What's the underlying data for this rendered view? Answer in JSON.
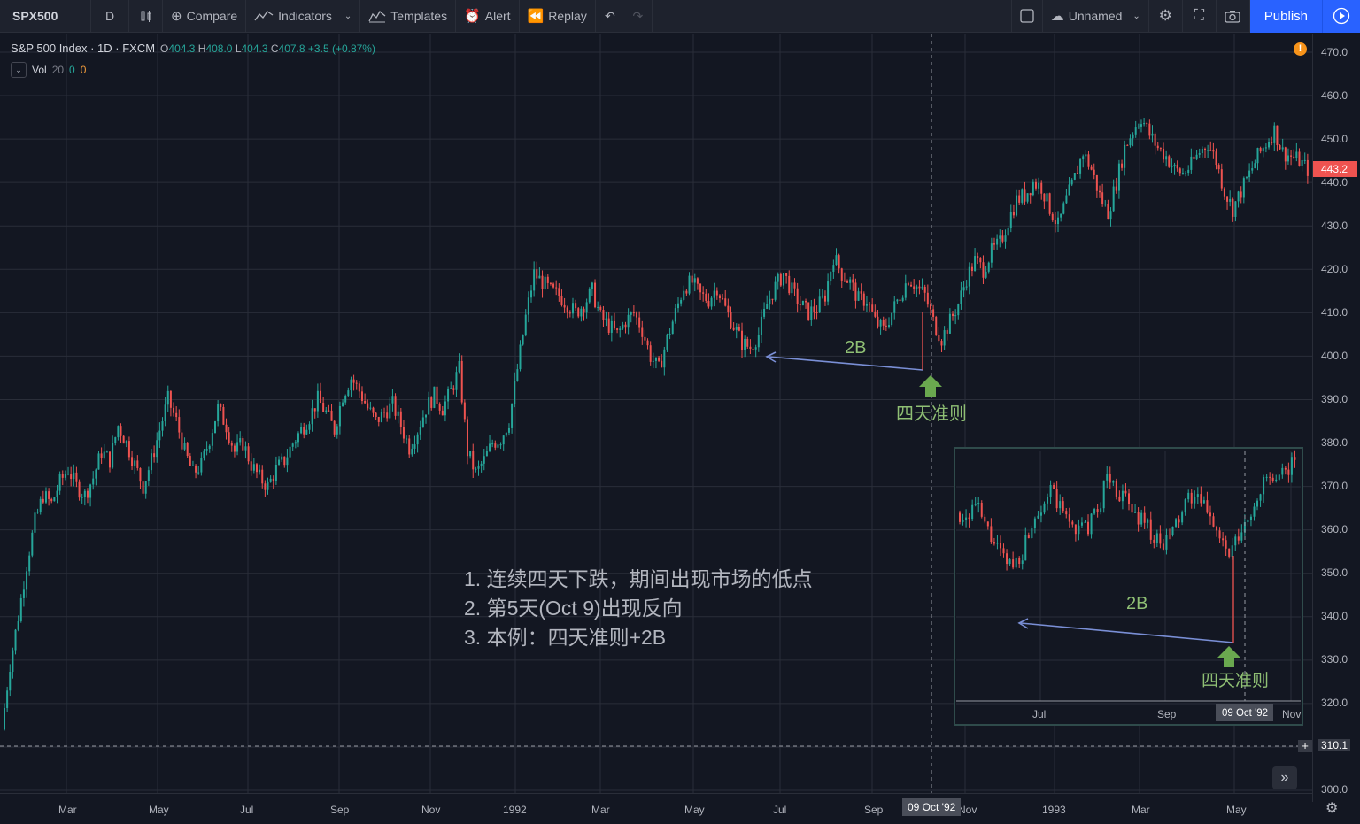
{
  "toolbar": {
    "symbol": "SPX500",
    "interval": "D",
    "compare": "Compare",
    "indicators": "Indicators",
    "templates": "Templates",
    "alert": "Alert",
    "replay": "Replay",
    "layout_name": "Unnamed",
    "publish": "Publish"
  },
  "legend": {
    "title": "S&P 500 Index · 1D · FXCM",
    "open_label": "O",
    "open": "404.3",
    "high_label": "H",
    "high": "408.0",
    "low_label": "L",
    "low": "404.3",
    "close_label": "C",
    "close": "407.8",
    "change": "+3.5 (+0.87%)",
    "vol_label": "Vol",
    "vol_period": "20",
    "vol_v1": "0",
    "vol_v2": "0"
  },
  "annotations": {
    "main_2b": "2B",
    "main_arrow_label": "四天准则",
    "inset_2b": "2B",
    "inset_arrow_label": "四天准则",
    "notes": [
      "1. 连续四天下跌，期间出现市场的低点",
      "2. 第5天(Oct 9)出现反向",
      "3. 本例：四天准则+2B"
    ]
  },
  "price_axis": {
    "labels": [
      "470.0",
      "460.0",
      "450.0",
      "440.0",
      "430.0",
      "420.0",
      "410.0",
      "400.0",
      "390.0",
      "380.0",
      "370.0",
      "360.0",
      "350.0",
      "340.0",
      "330.0",
      "320.0",
      "310.0",
      "300.0"
    ],
    "last_price": "443.2",
    "crosshair_price": "310.1"
  },
  "time_axis": {
    "labels": [
      "Mar",
      "May",
      "Jul",
      "Sep",
      "Nov",
      "1992",
      "Mar",
      "May",
      "Jul",
      "Sep",
      "Nov",
      "1993",
      "Mar",
      "May"
    ],
    "crosshair_date": "09 Oct '92"
  },
  "inset_axis": {
    "labels": [
      "Jul",
      "Sep",
      "Nov"
    ],
    "crosshair_date": "09 Oct '92"
  },
  "colors": {
    "up": "#26a69a",
    "down": "#ef5350",
    "background": "#131722",
    "grid": "#2a2e39",
    "accent": "#2962ff",
    "annotation_green": "#6aa84f",
    "arrow_line": "#7a8fd6"
  },
  "chart_data": {
    "type": "candlestick",
    "title": "S&P 500 Index · 1D · FXCM",
    "ylim": [
      300,
      470
    ],
    "series": [
      {
        "name": "S&P 500 Index",
        "values": [
          314,
          329,
          340,
          352,
          362,
          368,
          366,
          371,
          374,
          370,
          368,
          372,
          378,
          376,
          384,
          380,
          375,
          370,
          376,
          383,
          390,
          385,
          378,
          373,
          375,
          381,
          388,
          384,
          378,
          380,
          375,
          372,
          370,
          374,
          376,
          380,
          383,
          386,
          390,
          387,
          383,
          391,
          395,
          392,
          388,
          385,
          387,
          389,
          384,
          379,
          383,
          388,
          391,
          388,
          392,
          397,
          378,
          373,
          376,
          380,
          381,
          385,
          397,
          409,
          419,
          417,
          415,
          414,
          412,
          410,
          412,
          415,
          409,
          407,
          405,
          408,
          410,
          406,
          400,
          397,
          404,
          410,
          416,
          417,
          414,
          413,
          416,
          411,
          407,
          403,
          402,
          405,
          412,
          416,
          419,
          415,
          412,
          410,
          411,
          414,
          423,
          419,
          417,
          413,
          413,
          408,
          406,
          410,
          414,
          418,
          416,
          414,
          408,
          404,
          408,
          412,
          418,
          422,
          420,
          424,
          426,
          431,
          436,
          437,
          440,
          439,
          434,
          430,
          436,
          441,
          447,
          443,
          437,
          433,
          440,
          448,
          452,
          455,
          451,
          448,
          446,
          443,
          442,
          444,
          447,
          449,
          445,
          438,
          434,
          438,
          442,
          446,
          449,
          452,
          447,
          446,
          445,
          443
        ]
      }
    ],
    "main_2b_low": 400,
    "main_2b_retest": 397,
    "inset": {
      "type": "candlestick",
      "ylim": [
        320,
        378
      ],
      "x": [
        "Jul",
        "Sep",
        "Nov"
      ]
    }
  }
}
